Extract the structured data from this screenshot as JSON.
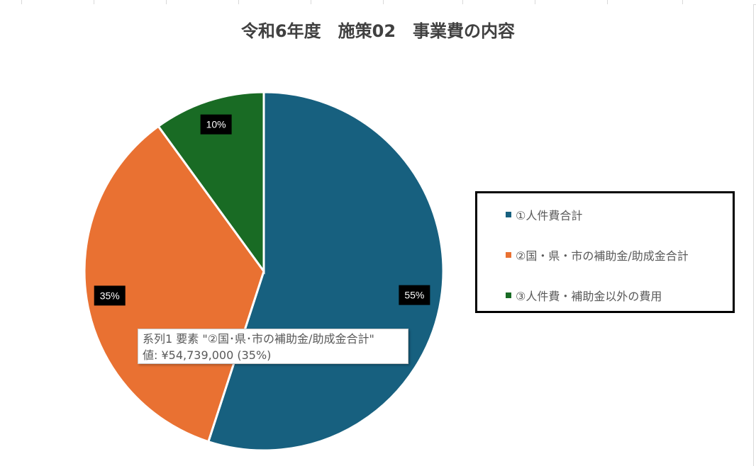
{
  "chart_data": {
    "type": "pie",
    "title": "令和6年度　施策02　事業費の内容",
    "categories": [
      "①人件費合計",
      "②国・県・市の補助金/助成金合計",
      "③人件費・補助金以外の費用"
    ],
    "values": [
      55,
      35,
      10
    ],
    "data_labels": [
      "55%",
      "35%",
      "10%"
    ],
    "colors": [
      "#17607F",
      "#E97132",
      "#196B24"
    ],
    "legend_position": "right"
  },
  "tooltip": {
    "line1": "系列1 要素 \"②国･県･市の補助金/助成金合計\"",
    "line2": "値: ¥54,739,000  (35%)"
  }
}
